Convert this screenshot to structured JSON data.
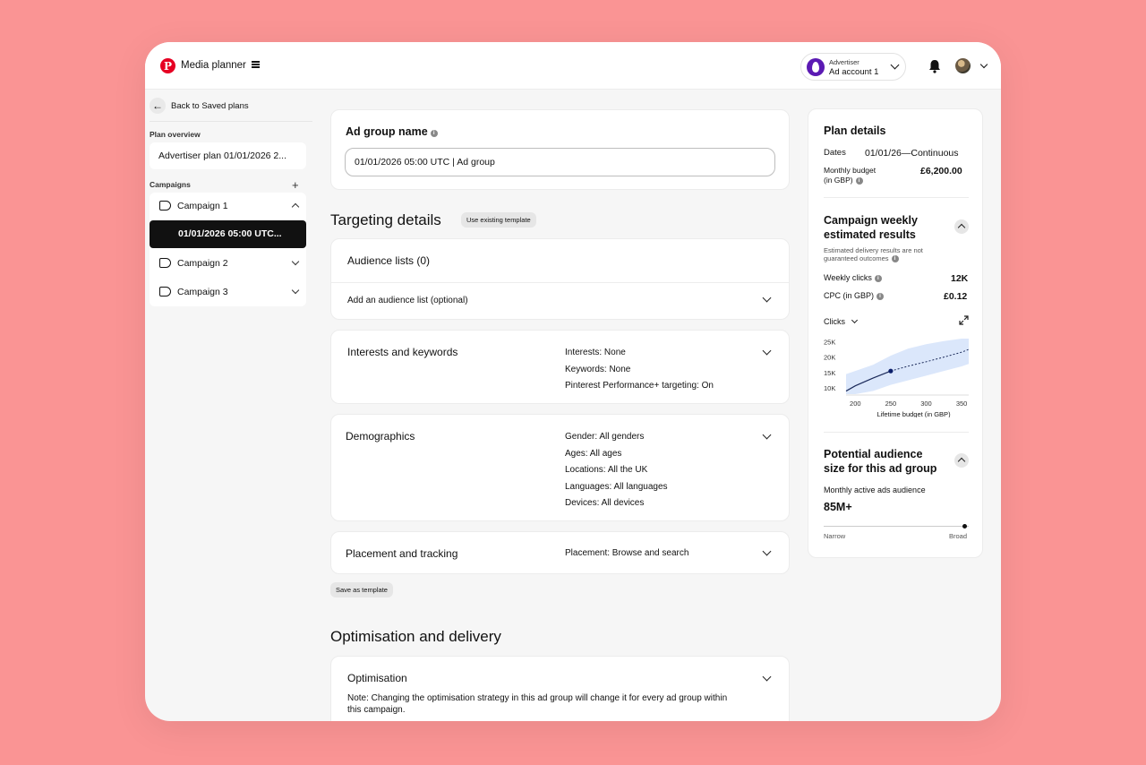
{
  "header": {
    "app_title": "Media planner",
    "account_label": "Advertiser",
    "account_name": "Ad account 1",
    "icons": [
      "pinterest-logo-icon",
      "menu-icon",
      "bell-icon",
      "avatar",
      "chevron-down-icon"
    ]
  },
  "sidebar": {
    "back_label": "Back to Saved plans",
    "plan_overview_heading": "Plan overview",
    "plan_name": "Advertiser plan 01/01/2026 2...",
    "campaigns_heading": "Campaigns",
    "campaigns": [
      {
        "label": "Campaign 1",
        "expanded": true
      },
      {
        "label": "Campaign 2",
        "expanded": false
      },
      {
        "label": "Campaign 3",
        "expanded": false
      }
    ],
    "selected_ad_group": "01/01/2026 05:00 UTC..."
  },
  "main": {
    "ad_group_name_label": "Ad group name",
    "ad_group_name_value": "01/01/2026 05:00 UTC | Ad group",
    "targeting_title": "Targeting details",
    "use_template_label": "Use existing template",
    "audience_title": "Audience lists (0)",
    "audience_add": "Add an audience list (optional)",
    "interests": {
      "title": "Interests and keywords",
      "lines": [
        "Interests: None",
        "Keywords: None",
        "Pinterest Performance+ targeting: On"
      ]
    },
    "demographics": {
      "title": "Demographics",
      "lines": [
        "Gender: All genders",
        "Ages: All ages",
        "Locations: All the UK",
        "Languages: All languages",
        "Devices: All devices"
      ]
    },
    "placement": {
      "title": "Placement and tracking",
      "summary": "Placement: Browse and search"
    },
    "save_template_label": "Save as template",
    "optimisation_title": "Optimisation and delivery",
    "optimisation_card_title": "Optimisation",
    "optimisation_note": "Note: Changing the optimisation strategy in this ad group will change it for every ad group within this campaign."
  },
  "plan_details": {
    "title": "Plan details",
    "dates_label": "Dates",
    "dates_value": "01/01/26—Continuous",
    "budget_label_1": "Monthly budget",
    "budget_label_2": "(in GBP)",
    "budget_value": "£6,200.00",
    "weekly_title_1": "Campaign weekly",
    "weekly_title_2": "estimated results",
    "weekly_note_1": "Estimated delivery results are not",
    "weekly_note_2": "guaranteed outcomes",
    "weekly_clicks_label": "Weekly clicks",
    "weekly_clicks_value": "12K",
    "cpc_label": "CPC (in GBP)",
    "cpc_value": "£0.12",
    "chart_metric": "Clicks",
    "audience_title_1": "Potential audience",
    "audience_title_2": "size for this ad group",
    "audience_sub": "Monthly active ads audience",
    "audience_value": "85M+",
    "audience_level": 0.97,
    "narrow_label": "Narrow",
    "broad_label": "Broad"
  },
  "chart_data": {
    "type": "line",
    "xlabel": "Lifetime budget (in GBP)",
    "ylabel": "",
    "x_ticks": [
      "200",
      "250",
      "300",
      "350"
    ],
    "y_ticks": [
      "10K",
      "15K",
      "20K",
      "25K"
    ],
    "xlim": [
      187,
      360
    ],
    "ylim": [
      8000,
      26000
    ],
    "series": [
      {
        "x": [
          187,
          200,
          225,
          250,
          275,
          300,
          325,
          350,
          360
        ],
        "y": [
          9000,
          10700,
          13200,
          15500,
          17100,
          18500,
          20000,
          21600,
          22500
        ]
      }
    ],
    "band_upper": [
      14500,
      15500,
      17500,
      20500,
      22800,
      24200,
      25200,
      26000,
      26000
    ],
    "band_lower": [
      8000,
      8000,
      9000,
      11000,
      12500,
      14000,
      15500,
      17000,
      17800
    ],
    "highlight_point": {
      "x": 250,
      "y": 15500
    },
    "solid_until": 250
  }
}
